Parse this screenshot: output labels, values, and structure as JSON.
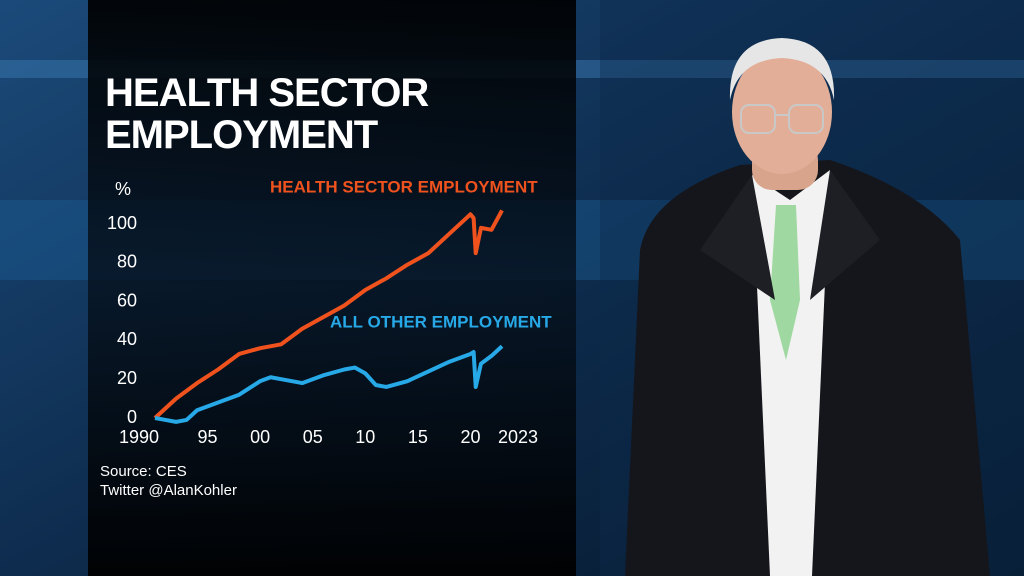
{
  "chart_data": {
    "type": "line",
    "title": "HEALTH SECTOR EMPLOYMENT",
    "y_label": "%",
    "xlim": [
      1990,
      2023
    ],
    "xticks": [
      1990,
      {
        "value": 1995,
        "label": "95"
      },
      {
        "value": 2000,
        "label": "00"
      },
      {
        "value": 2005,
        "label": "05"
      },
      {
        "value": 2010,
        "label": "10"
      },
      {
        "value": 2015,
        "label": "15"
      },
      {
        "value": 2020,
        "label": "20"
      },
      2023
    ],
    "ylim": [
      0,
      110
    ],
    "yticks": [
      0,
      20,
      40,
      60,
      80,
      100
    ],
    "grid": false,
    "series": [
      {
        "name": "HEALTH SECTOR EMPLOYMENT",
        "color": "#f0521e",
        "x": [
          1990,
          1992,
          1994,
          1996,
          1998,
          2000,
          2002,
          2004,
          2006,
          2008,
          2010,
          2012,
          2014,
          2016,
          2018,
          2020,
          2020.3,
          2020.5,
          2021,
          2022,
          2023
        ],
        "values": [
          0,
          10,
          18,
          25,
          33,
          36,
          38,
          46,
          52,
          58,
          66,
          72,
          79,
          85,
          95,
          105,
          103,
          85,
          98,
          97,
          107
        ]
      },
      {
        "name": "ALL OTHER EMPLOYMENT",
        "color": "#27a9e8",
        "x": [
          1990,
          1991,
          1992,
          1993,
          1994,
          1996,
          1998,
          2000,
          2001,
          2002,
          2004,
          2006,
          2008,
          2009,
          2010,
          2011,
          2012,
          2014,
          2016,
          2018,
          2019,
          2020,
          2020.3,
          2020.5,
          2021,
          2022,
          2023
        ],
        "values": [
          0,
          -1,
          -2,
          -1,
          4,
          8,
          12,
          19,
          21,
          20,
          18,
          22,
          25,
          26,
          23,
          17,
          16,
          19,
          24,
          29,
          31,
          33,
          34,
          16,
          28,
          32,
          37
        ]
      }
    ],
    "source": "Source: CES",
    "credit": "Twitter @AlanKohler"
  }
}
